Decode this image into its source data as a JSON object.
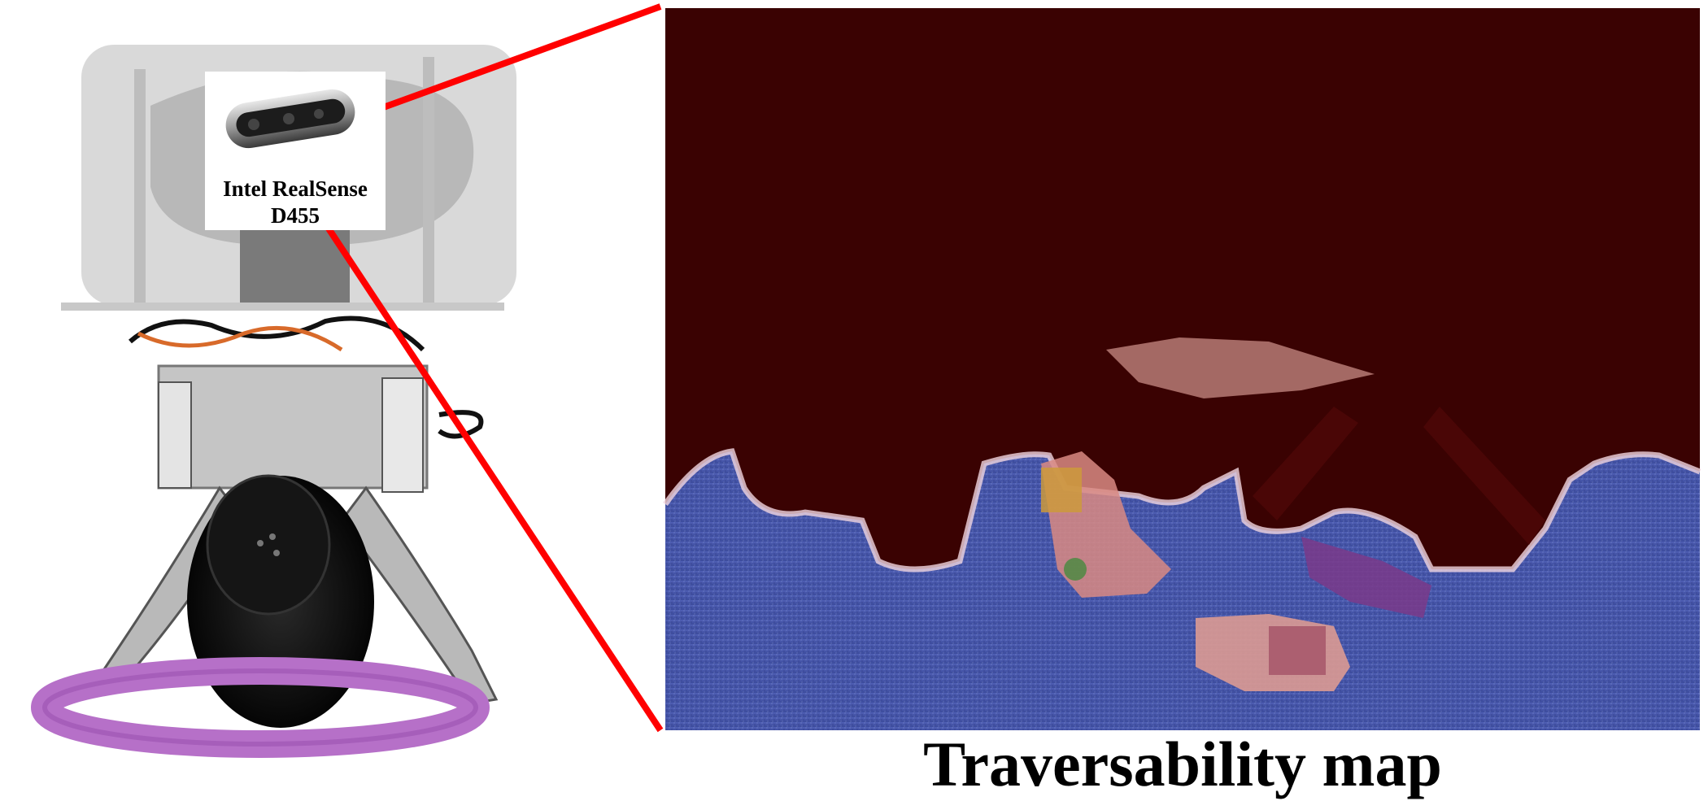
{
  "camera_callout": {
    "line1": "Intel RealSense",
    "line2": "D455",
    "icon": "depth-camera-icon"
  },
  "map": {
    "caption": "Traversability map"
  },
  "colors": {
    "connector_line": "#ff0000",
    "non_traversable": "#3a0202",
    "traversable": "#3f4fa6",
    "background": "#ffffff"
  },
  "illustrations": {
    "robot_photo": "legged-robot-photo",
    "bumper": "purple-ring-bumper"
  }
}
